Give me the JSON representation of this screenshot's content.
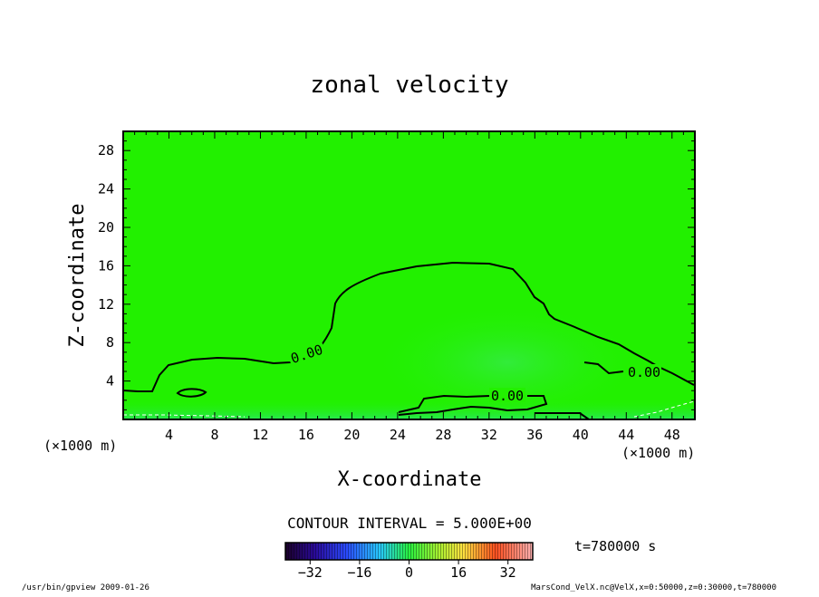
{
  "chart_data": {
    "type": "heatmap",
    "title": "zonal velocity",
    "xlabel": "X-coordinate",
    "ylabel": "Z-coordinate",
    "x_unit_note": "(×1000 m)",
    "y_unit_note": "(×1000 m)",
    "xlim": [
      0,
      50
    ],
    "ylim": [
      0,
      30
    ],
    "x_ticks": [
      "4",
      "8",
      "12",
      "16",
      "20",
      "24",
      "28",
      "32",
      "36",
      "40",
      "44",
      "48"
    ],
    "y_ticks": [
      "4",
      "8",
      "12",
      "16",
      "20",
      "24",
      "28"
    ],
    "contour_interval_text": "CONTOUR INTERVAL = 5.000E+00",
    "contour_labels": [
      "0.00",
      "0.00",
      "0.00"
    ],
    "time_text": "t=780000  s",
    "colorbar": {
      "range": [
        -40,
        40
      ],
      "ticks": [
        "−32",
        "−16",
        "0",
        "16",
        "32"
      ]
    },
    "footer_left": "/usr/bin/gpview   2009-01-26",
    "footer_right": "MarsCond_VelX.nc@VelX,x=0:50000,z=0:30000,t=780000",
    "fill_color": "#22f000",
    "contour_color": "#000000"
  }
}
